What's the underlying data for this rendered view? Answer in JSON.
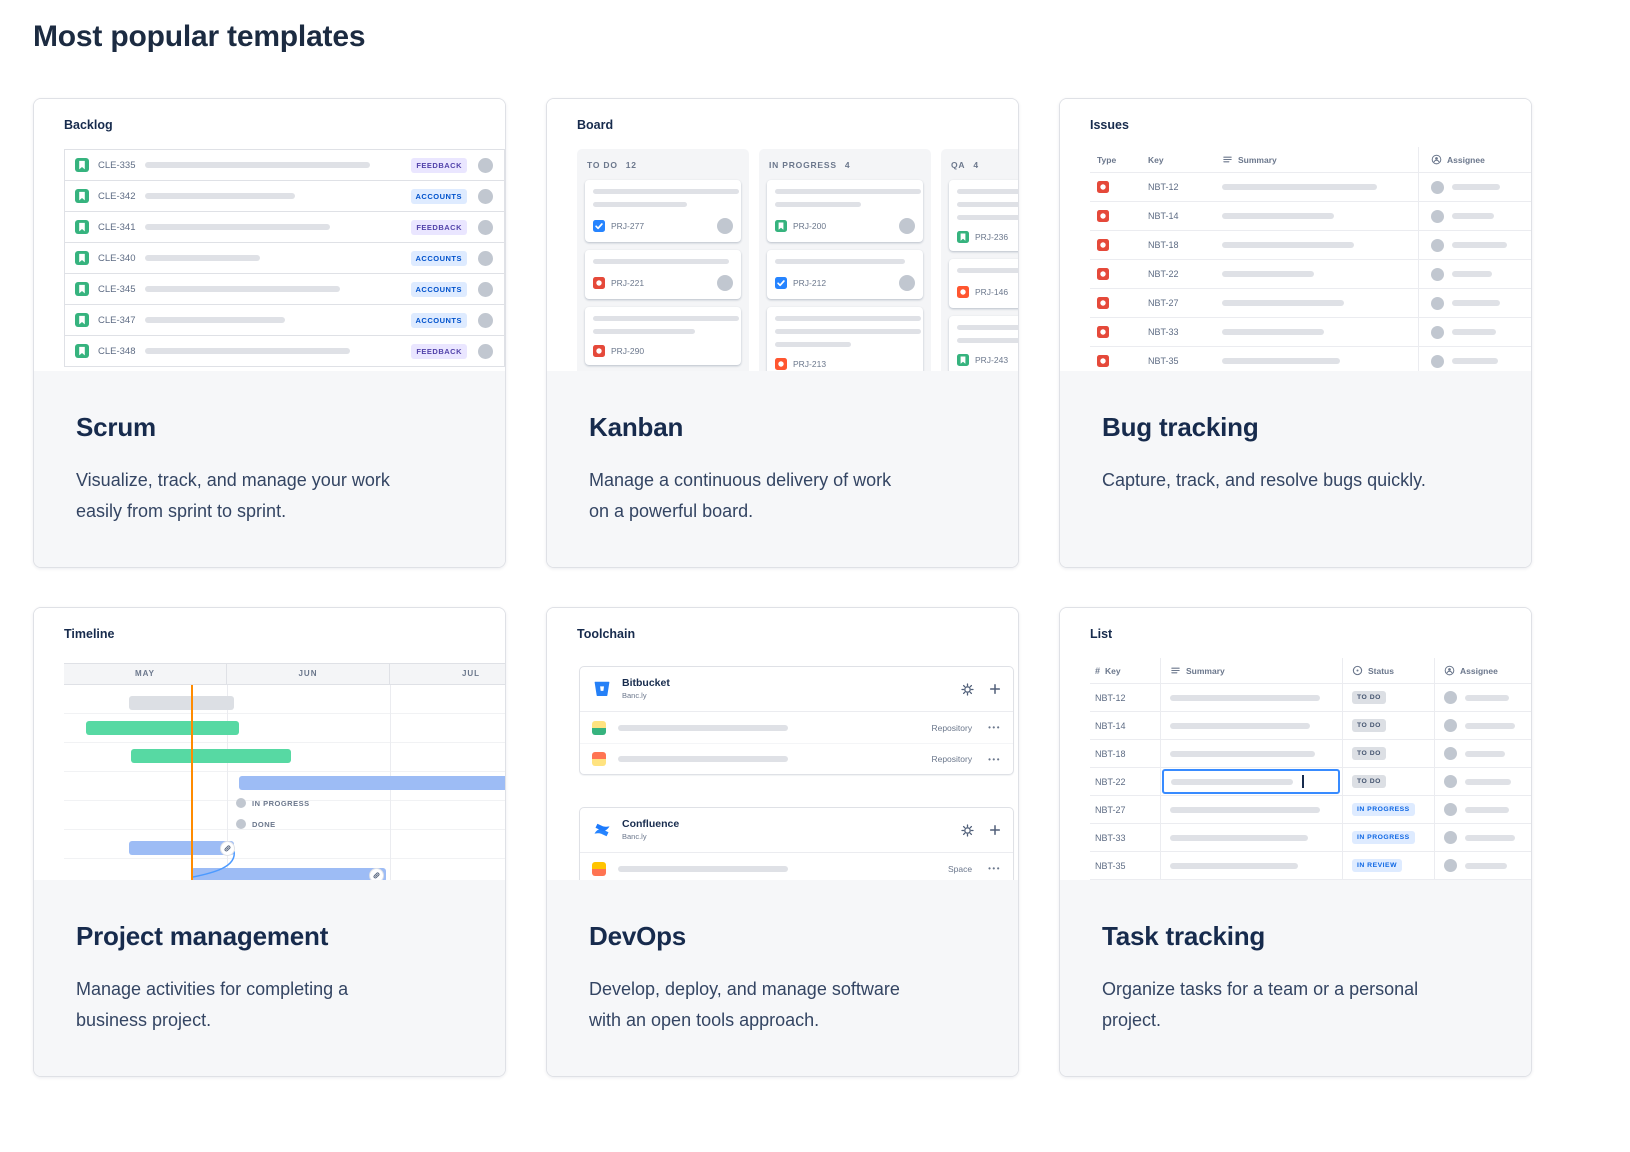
{
  "page": {
    "title": "Most popular templates"
  },
  "colors": {
    "issue_task": "#2684FF",
    "issue_story": "#36B37E",
    "issue_bug": "#E5493A",
    "issue_incident": "#FF5630",
    "timeline_green": "#57D9A3",
    "timeline_blue": "#9DBCF5",
    "timeline_gray": "#DCDFE4",
    "today_line": "#FF8B00",
    "focus_border": "#388BFF"
  },
  "cards": [
    {
      "id": "scrum",
      "preview_label": "Backlog",
      "title": "Scrum",
      "description": "Visualize, track, and manage your work\neasily from sprint to sprint.",
      "rows": [
        {
          "key": "CLE-335",
          "badge": "FEEDBACK",
          "badge_type": "feedback",
          "bar": 225
        },
        {
          "key": "CLE-342",
          "badge": "ACCOUNTS",
          "badge_type": "accounts",
          "bar": 150
        },
        {
          "key": "CLE-341",
          "badge": "FEEDBACK",
          "badge_type": "feedback",
          "bar": 185
        },
        {
          "key": "CLE-340",
          "badge": "ACCOUNTS",
          "badge_type": "accounts",
          "bar": 115
        },
        {
          "key": "CLE-345",
          "badge": "ACCOUNTS",
          "badge_type": "accounts",
          "bar": 195
        },
        {
          "key": "CLE-347",
          "badge": "ACCOUNTS",
          "badge_type": "accounts",
          "bar": 140
        },
        {
          "key": "CLE-348",
          "badge": "FEEDBACK",
          "badge_type": "feedback",
          "bar": 205
        }
      ]
    },
    {
      "id": "kanban",
      "preview_label": "Board",
      "title": "Kanban",
      "description": "Manage a continuous delivery of work\non a powerful board.",
      "columns": [
        {
          "name": "TO DO",
          "count": "12",
          "cards": [
            {
              "key": "PRJ-277",
              "type": "task",
              "bars": [
                146,
                94
              ],
              "avatar": true
            },
            {
              "key": "PRJ-221",
              "type": "bug",
              "bars": [
                136
              ],
              "avatar": true
            },
            {
              "key": "PRJ-290",
              "type": "bug",
              "bars": [
                146,
                102
              ],
              "avatar": false
            }
          ]
        },
        {
          "name": "IN PROGRESS",
          "count": "4",
          "cards": [
            {
              "key": "PRJ-200",
              "type": "story",
              "bars": [
                146,
                86
              ],
              "avatar": true
            },
            {
              "key": "PRJ-212",
              "type": "task",
              "bars": [
                130
              ],
              "avatar": true
            },
            {
              "key": "PRJ-213",
              "type": "incident",
              "bars": [
                146,
                146,
                76
              ],
              "avatar": false
            }
          ]
        },
        {
          "name": "QA",
          "count": "4",
          "cards": [
            {
              "key": "PRJ-236",
              "type": "story",
              "bars": [
                138,
                138,
                66
              ],
              "avatar": false
            },
            {
              "key": "PRJ-146",
              "type": "incident",
              "bars": [
                126
              ],
              "avatar": true
            },
            {
              "key": "PRJ-243",
              "type": "story",
              "bars": [
                138,
                74
              ],
              "avatar": false
            }
          ]
        }
      ]
    },
    {
      "id": "bug-tracking",
      "preview_label": "Issues",
      "title": "Bug tracking",
      "description": "Capture, track, and resolve bugs quickly.",
      "headers": {
        "type": "Type",
        "key": "Key",
        "summary": "Summary",
        "assignee": "Assignee"
      },
      "rows": [
        {
          "key": "NBT-12",
          "bar": 155,
          "abar": 48
        },
        {
          "key": "NBT-14",
          "bar": 112,
          "abar": 42
        },
        {
          "key": "NBT-18",
          "bar": 132,
          "abar": 55
        },
        {
          "key": "NBT-22",
          "bar": 92,
          "abar": 40
        },
        {
          "key": "NBT-27",
          "bar": 122,
          "abar": 48
        },
        {
          "key": "NBT-33",
          "bar": 102,
          "abar": 44
        },
        {
          "key": "NBT-35",
          "bar": 118,
          "abar": 46
        }
      ]
    },
    {
      "id": "project-management",
      "preview_label": "Timeline",
      "title": "Project management",
      "description": "Manage activities for completing a\nbusiness project.",
      "months": [
        "MAY",
        "JUN",
        "JUL"
      ],
      "labels": {
        "in_progress": "IN PROGRESS",
        "done": "DONE"
      }
    },
    {
      "id": "devops",
      "preview_label": "Toolchain",
      "title": "DevOps",
      "description": "Develop, deploy, and manage software\nwith an open tools approach.",
      "tools": [
        {
          "name": "Bitbucket",
          "org": "Banc.ly",
          "logo": "bitbucket",
          "rows": [
            {
              "label": "Repository",
              "icon": [
                "#FFE380",
                "#36B37E"
              ],
              "bar": 170
            },
            {
              "label": "Repository",
              "icon": [
                "#FF7452",
                "#FFE380"
              ],
              "bar": 170
            }
          ]
        },
        {
          "name": "Confluence",
          "org": "Banc.ly",
          "logo": "confluence",
          "rows": [
            {
              "label": "Space",
              "icon": [
                "#FFC400",
                "#FF7452"
              ],
              "bar": 170
            }
          ]
        }
      ]
    },
    {
      "id": "task-tracking",
      "preview_label": "List",
      "title": "Task tracking",
      "description": "Organize tasks for a team or a personal\nproject.",
      "headers": {
        "key": "Key",
        "summary": "Summary",
        "status": "Status",
        "assignee": "Assignee"
      },
      "rows": [
        {
          "key": "NBT-12",
          "status": "TO DO",
          "status_type": "todo",
          "bar": 150,
          "abar": 44
        },
        {
          "key": "NBT-14",
          "status": "TO DO",
          "status_type": "todo",
          "bar": 140,
          "abar": 50
        },
        {
          "key": "NBT-18",
          "status": "TO DO",
          "status_type": "todo",
          "bar": 145,
          "abar": 40
        },
        {
          "key": "NBT-22",
          "status": "TO DO",
          "status_type": "todo",
          "bar": 122,
          "abar": 46,
          "editing": true
        },
        {
          "key": "NBT-27",
          "status": "IN PROGRESS",
          "status_type": "inprogress",
          "bar": 150,
          "abar": 44
        },
        {
          "key": "NBT-33",
          "status": "IN PROGRESS",
          "status_type": "inprogress",
          "bar": 138,
          "abar": 50
        },
        {
          "key": "NBT-35",
          "status": "IN REVIEW",
          "status_type": "inreview",
          "bar": 128,
          "abar": 42
        }
      ]
    }
  ]
}
